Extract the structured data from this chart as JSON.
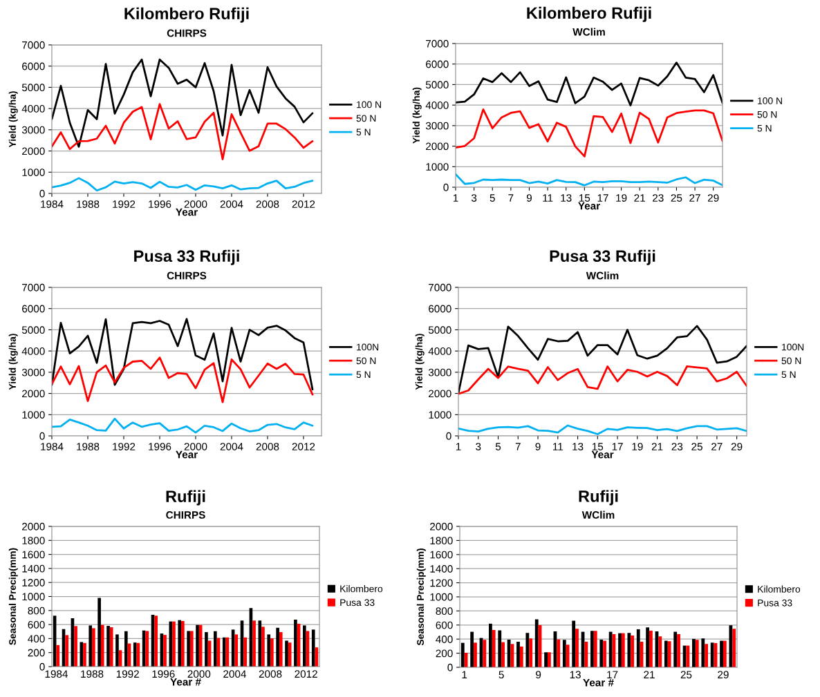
{
  "chart_data": [
    {
      "type": "line",
      "title": "Kilombero Rufiji",
      "subtitle": "CHIRPS",
      "xlabel": "Year",
      "ylabel": "Yield (kg/ha)",
      "x": [
        1984,
        1985,
        1986,
        1987,
        1988,
        1989,
        1990,
        1991,
        1992,
        1993,
        1994,
        1995,
        1996,
        1997,
        1998,
        1999,
        2000,
        2001,
        2002,
        2003,
        2004,
        2005,
        2006,
        2007,
        2008,
        2009,
        2010,
        2011,
        2012,
        2013
      ],
      "xlim": [
        1984,
        2014
      ],
      "xticks": [
        1984,
        1988,
        1992,
        1996,
        2000,
        2004,
        2008,
        2012
      ],
      "ylim": [
        0,
        7000
      ],
      "yticks": [
        0,
        1000,
        2000,
        3000,
        4000,
        5000,
        6000,
        7000
      ],
      "grid": "y",
      "legend": "right",
      "series": [
        {
          "name": "100 N",
          "color": "#000000",
          "values": [
            3500,
            5070,
            3330,
            2200,
            3930,
            3500,
            6100,
            3760,
            4660,
            5710,
            6310,
            4580,
            6310,
            5920,
            5170,
            5360,
            5000,
            6140,
            4820,
            2730,
            6060,
            3690,
            4870,
            3800,
            5950,
            5040,
            4480,
            4090,
            3350,
            3780
          ]
        },
        {
          "name": "50 N",
          "color": "#ff0000",
          "values": [
            2210,
            2880,
            2090,
            2460,
            2470,
            2580,
            3190,
            2350,
            3330,
            3850,
            4070,
            2550,
            4210,
            3060,
            3400,
            2560,
            2640,
            3380,
            3800,
            1610,
            3730,
            2860,
            2010,
            2220,
            3290,
            3290,
            3030,
            2640,
            2150,
            2460
          ]
        },
        {
          "name": "5 N",
          "color": "#00b0f0",
          "values": [
            290,
            370,
            500,
            720,
            500,
            140,
            290,
            560,
            470,
            530,
            470,
            260,
            550,
            310,
            280,
            400,
            170,
            380,
            330,
            240,
            380,
            190,
            240,
            260,
            470,
            600,
            240,
            310,
            490,
            600
          ]
        }
      ]
    },
    {
      "type": "line",
      "title": "Kilombero Rufiji",
      "subtitle": "WClim",
      "xlabel": "Year",
      "ylabel": "Yield (kg/ha)",
      "x": [
        1,
        2,
        3,
        4,
        5,
        6,
        7,
        8,
        9,
        10,
        11,
        12,
        13,
        14,
        15,
        16,
        17,
        18,
        19,
        20,
        21,
        22,
        23,
        24,
        25,
        26,
        27,
        28,
        29,
        30
      ],
      "xlim": [
        1,
        30
      ],
      "xticks": [
        1,
        3,
        5,
        7,
        9,
        11,
        13,
        15,
        17,
        19,
        21,
        23,
        25,
        27,
        29
      ],
      "ylim": [
        0,
        7000
      ],
      "yticks": [
        0,
        1000,
        2000,
        3000,
        4000,
        5000,
        6000,
        7000
      ],
      "grid": "y",
      "legend": "right",
      "series": [
        {
          "name": "100 N",
          "color": "#000000",
          "values": [
            4130,
            4170,
            4520,
            5300,
            5120,
            5550,
            5120,
            5600,
            4930,
            5160,
            4270,
            4150,
            5350,
            4090,
            4410,
            5340,
            5140,
            4740,
            5050,
            3990,
            5320,
            5210,
            4950,
            5400,
            6070,
            5340,
            5270,
            4630,
            5460,
            4100
          ]
        },
        {
          "name": "50 N",
          "color": "#ff0000",
          "values": [
            1930,
            2010,
            2380,
            3790,
            2870,
            3400,
            3620,
            3700,
            2890,
            3070,
            2230,
            3140,
            2940,
            1990,
            1500,
            3460,
            3420,
            2690,
            3590,
            2150,
            3630,
            3330,
            2180,
            3400,
            3610,
            3680,
            3740,
            3740,
            3600,
            2250
          ]
        },
        {
          "name": "5 N",
          "color": "#00b0f0",
          "values": [
            630,
            160,
            210,
            370,
            350,
            370,
            350,
            350,
            200,
            270,
            180,
            350,
            260,
            250,
            90,
            270,
            250,
            290,
            290,
            250,
            250,
            270,
            250,
            220,
            380,
            480,
            200,
            370,
            320,
            100
          ]
        }
      ]
    },
    {
      "type": "line",
      "title": "Pusa 33 Rufiji",
      "subtitle": "CHIRPS",
      "xlabel": "Year",
      "ylabel": "Yield (kg/ha)",
      "x": [
        1984,
        1985,
        1986,
        1987,
        1988,
        1989,
        1990,
        1991,
        1992,
        1993,
        1994,
        1995,
        1996,
        1997,
        1998,
        1999,
        2000,
        2001,
        2002,
        2003,
        2004,
        2005,
        2006,
        2007,
        2008,
        2009,
        2010,
        2011,
        2012,
        2013
      ],
      "xlim": [
        1984,
        2014
      ],
      "xticks": [
        1984,
        1988,
        1992,
        1996,
        2000,
        2004,
        2008,
        2012
      ],
      "ylim": [
        0,
        7000
      ],
      "yticks": [
        0,
        1000,
        2000,
        3000,
        4000,
        5000,
        6000,
        7000
      ],
      "grid": "y",
      "legend": "right",
      "series": [
        {
          "name": "100N",
          "color": "#000000",
          "values": [
            2410,
            5330,
            3890,
            4210,
            4720,
            3440,
            5500,
            2410,
            3160,
            5310,
            5370,
            5310,
            5420,
            5240,
            4230,
            5510,
            3790,
            3590,
            4830,
            2570,
            5090,
            3500,
            5000,
            4750,
            5100,
            5190,
            4970,
            4610,
            4400,
            2190
          ]
        },
        {
          "name": "50 N",
          "color": "#ff0000",
          "values": [
            2440,
            3270,
            2430,
            3290,
            1640,
            3000,
            3320,
            2520,
            3210,
            3500,
            3540,
            3160,
            3690,
            2730,
            2960,
            2920,
            2250,
            3120,
            3430,
            1590,
            3600,
            3140,
            2280,
            2840,
            3410,
            3160,
            3400,
            2920,
            2890,
            1950
          ]
        },
        {
          "name": "5 N",
          "color": "#00b0f0",
          "values": [
            430,
            450,
            770,
            630,
            480,
            270,
            250,
            810,
            350,
            630,
            430,
            530,
            600,
            240,
            300,
            450,
            160,
            480,
            410,
            230,
            580,
            360,
            210,
            270,
            520,
            560,
            400,
            310,
            630,
            480
          ]
        }
      ]
    },
    {
      "type": "line",
      "title": "Pusa 33 Rufiji",
      "subtitle": "WClim",
      "xlabel": "Year",
      "ylabel": "Yield (kg/ha)",
      "x": [
        1,
        2,
        3,
        4,
        5,
        6,
        7,
        8,
        9,
        10,
        11,
        12,
        13,
        14,
        15,
        16,
        17,
        18,
        19,
        20,
        21,
        22,
        23,
        24,
        25,
        26,
        27,
        28,
        29,
        30
      ],
      "xlim": [
        1,
        30
      ],
      "xticks": [
        1,
        3,
        5,
        7,
        9,
        11,
        13,
        15,
        17,
        19,
        21,
        23,
        25,
        27,
        29
      ],
      "ylim": [
        0,
        7000
      ],
      "yticks": [
        0,
        1000,
        2000,
        3000,
        4000,
        5000,
        6000,
        7000
      ],
      "grid": "y",
      "legend": "right",
      "series": [
        {
          "name": "100N",
          "color": "#000000",
          "values": [
            2010,
            4260,
            4090,
            4140,
            2770,
            5150,
            4710,
            4130,
            3590,
            4570,
            4460,
            4480,
            4890,
            3780,
            4280,
            4280,
            3840,
            5000,
            3800,
            3640,
            3780,
            4130,
            4640,
            4700,
            5180,
            4540,
            3450,
            3510,
            3730,
            4240
          ]
        },
        {
          "name": "50 N",
          "color": "#ff0000",
          "values": [
            1980,
            2140,
            2660,
            3160,
            2730,
            3270,
            3160,
            3070,
            2480,
            3240,
            2630,
            2960,
            3150,
            2300,
            2220,
            3270,
            2570,
            3110,
            3020,
            2800,
            3020,
            2820,
            2390,
            3280,
            3230,
            3180,
            2570,
            2710,
            3020,
            2350
          ]
        },
        {
          "name": "5 N",
          "color": "#00b0f0",
          "values": [
            350,
            240,
            210,
            340,
            400,
            420,
            390,
            460,
            260,
            240,
            160,
            490,
            340,
            230,
            80,
            330,
            280,
            400,
            380,
            370,
            270,
            320,
            230,
            360,
            460,
            460,
            300,
            330,
            360,
            230
          ]
        }
      ]
    },
    {
      "type": "bar",
      "title": "Rufiji",
      "subtitle": "CHIRPS",
      "xlabel": "Year #",
      "ylabel": "Seasonal Precip(mm)",
      "categories": [
        "1984",
        null,
        null,
        null,
        "1988",
        null,
        null,
        null,
        "1992",
        null,
        null,
        null,
        "1996",
        null,
        null,
        null,
        "2000",
        null,
        null,
        null,
        "2004",
        null,
        null,
        null,
        "2008",
        null,
        null,
        null,
        "2012",
        null
      ],
      "ylim": [
        0,
        2000
      ],
      "yticks": [
        0,
        200,
        400,
        600,
        800,
        1000,
        1200,
        1400,
        1600,
        1800,
        2000
      ],
      "grid": "y",
      "legend": "right",
      "series": [
        {
          "name": "Kilombero",
          "color": "#000000",
          "values": [
            726,
            535,
            690,
            350,
            587,
            980,
            581,
            459,
            505,
            343,
            515,
            739,
            472,
            644,
            663,
            508,
            594,
            492,
            505,
            416,
            528,
            657,
            835,
            657,
            459,
            554,
            370,
            670,
            587,
            528
          ]
        },
        {
          "name": "Pusa 33",
          "color": "#ff0000",
          "values": [
            307,
            449,
            578,
            337,
            548,
            594,
            561,
            234,
            330,
            337,
            508,
            726,
            452,
            644,
            650,
            508,
            594,
            370,
            409,
            416,
            459,
            416,
            657,
            568,
            403,
            492,
            343,
            611,
            508,
            274
          ]
        }
      ]
    },
    {
      "type": "bar",
      "title": "Rufiji",
      "subtitle": "WClim",
      "xlabel": "Year #",
      "ylabel": "Seasonal Precip(mm)",
      "categories": [
        "1",
        null,
        null,
        null,
        "5",
        null,
        null,
        null,
        "9",
        null,
        null,
        null,
        "13",
        null,
        null,
        null,
        "17",
        null,
        null,
        null,
        "21",
        null,
        null,
        null,
        "25",
        null,
        null,
        null,
        "29",
        null
      ],
      "ylim": [
        0,
        2000
      ],
      "yticks": [
        0,
        200,
        400,
        600,
        800,
        1000,
        1200,
        1400,
        1600,
        1800,
        2000
      ],
      "grid": "y",
      "legend": "right",
      "series": [
        {
          "name": "Kilombero",
          "color": "#000000",
          "values": [
            347,
            504,
            416,
            619,
            524,
            393,
            363,
            488,
            681,
            213,
            510,
            390,
            661,
            504,
            517,
            393,
            504,
            484,
            488,
            540,
            566,
            510,
            377,
            504,
            308,
            403,
            409,
            350,
            377,
            596
          ]
        },
        {
          "name": "Pusa 33",
          "color": "#ff0000",
          "values": [
            206,
            350,
            390,
            530,
            357,
            331,
            295,
            409,
            599,
            213,
            396,
            321,
            547,
            363,
            517,
            377,
            471,
            484,
            452,
            363,
            520,
            439,
            370,
            471,
            308,
            390,
            331,
            344,
            377,
            547
          ]
        }
      ]
    }
  ]
}
